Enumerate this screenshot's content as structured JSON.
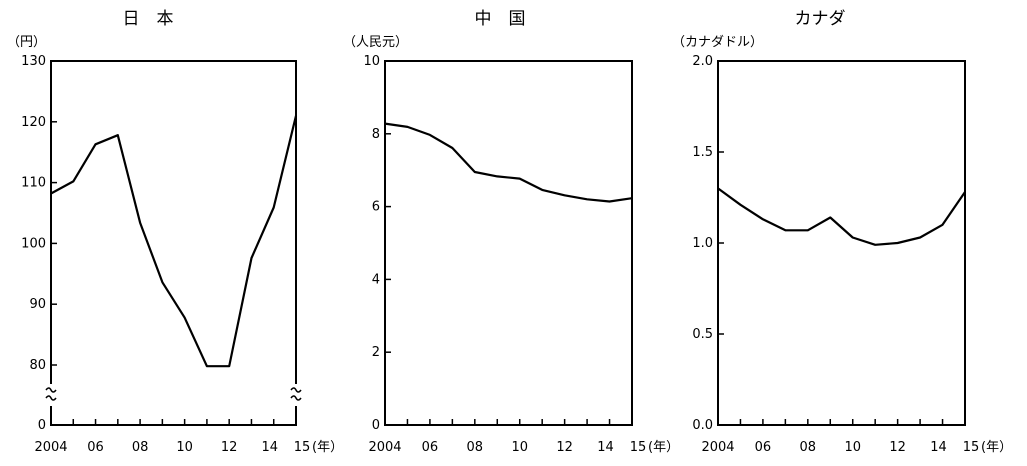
{
  "chart_data": [
    {
      "type": "line",
      "title": "日　本",
      "unit": "（円）",
      "x_unit": "(年）",
      "x": [
        2004,
        2005,
        2006,
        2007,
        2008,
        2009,
        2010,
        2011,
        2012,
        2013,
        2014,
        2015
      ],
      "x_tick_labels": [
        "2004",
        "06",
        "08",
        "10",
        "12",
        "14",
        "15"
      ],
      "y": [
        108.2,
        110.2,
        116.3,
        117.8,
        103.4,
        93.6,
        87.8,
        79.8,
        79.8,
        97.6,
        105.9,
        121.0
      ],
      "ylim": [
        0,
        130
      ],
      "y_ticks": [
        0,
        80,
        90,
        100,
        110,
        120,
        130
      ],
      "y_tick_labels": [
        "0",
        "80",
        "90",
        "100",
        "110",
        "120",
        "130"
      ],
      "axis_break": true
    },
    {
      "type": "line",
      "title": "中　国",
      "unit": "（人民元）",
      "x_unit": "(年）",
      "x": [
        2004,
        2005,
        2006,
        2007,
        2008,
        2009,
        2010,
        2011,
        2012,
        2013,
        2014,
        2015
      ],
      "x_tick_labels": [
        "2004",
        "06",
        "08",
        "10",
        "12",
        "14",
        "15"
      ],
      "y": [
        8.28,
        8.19,
        7.97,
        7.61,
        6.95,
        6.83,
        6.77,
        6.46,
        6.31,
        6.2,
        6.14,
        6.23
      ],
      "ylim": [
        0,
        10
      ],
      "y_ticks": [
        0,
        2,
        4,
        6,
        8,
        10
      ],
      "y_tick_labels": [
        "0",
        "2",
        "4",
        "6",
        "8",
        "10"
      ]
    },
    {
      "type": "line",
      "title": "カナダ",
      "unit": "（カナダドル）",
      "x_unit": "(年）",
      "x": [
        2004,
        2005,
        2006,
        2007,
        2008,
        2009,
        2010,
        2011,
        2012,
        2013,
        2014,
        2015
      ],
      "x_tick_labels": [
        "2004",
        "06",
        "08",
        "10",
        "12",
        "14",
        "15"
      ],
      "y": [
        1.3,
        1.21,
        1.13,
        1.07,
        1.07,
        1.14,
        1.03,
        0.99,
        1.0,
        1.03,
        1.1,
        1.28
      ],
      "ylim": [
        0,
        2.0
      ],
      "y_ticks": [
        0,
        0.5,
        1.0,
        1.5,
        2.0
      ],
      "y_tick_labels": [
        "0.0",
        "0.5",
        "1.0",
        "1.5",
        "2.0"
      ]
    }
  ]
}
